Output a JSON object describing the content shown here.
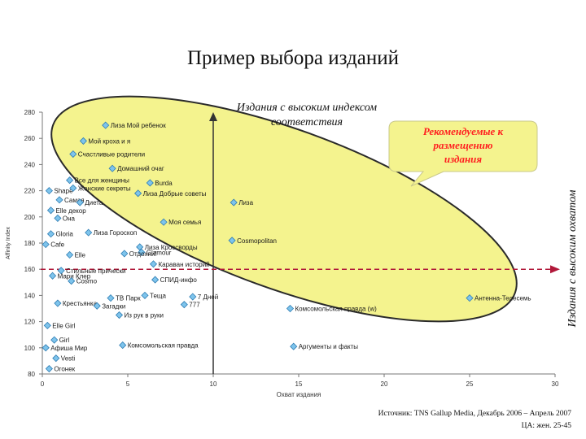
{
  "slide": {
    "title": "Пример выбора изданий",
    "source_line1": "Источник: TNS Gallup Media, Декабрь 2006 – Апрель 2007",
    "source_line2": "ЦА: жен. 25-45"
  },
  "colors": {
    "ellipse_fill": "#f4f38e",
    "ellipse_stroke": "#2a2a2a",
    "marker_fill": "#7ec4ec",
    "marker_stroke": "#2f7db3",
    "callout_fill": "#f4f38e",
    "callout_text": "#ff2020",
    "vline": "#333333",
    "hline": "#b1183a"
  },
  "chart_data": {
    "type": "scatter",
    "xlabel": "Охват издания",
    "ylabel": "Affinity Index",
    "xlim": [
      0,
      30
    ],
    "ylim": [
      80,
      280
    ],
    "xticks": [
      0,
      5,
      10,
      15,
      20,
      25,
      30
    ],
    "yticks": [
      80,
      100,
      120,
      140,
      160,
      180,
      200,
      220,
      240,
      260,
      280
    ],
    "reference_lines": {
      "x": 10,
      "y": 160
    },
    "annotations": {
      "ellipse_label_line1": "Издания с высоким индексом",
      "ellipse_label_line2": "соответствия",
      "callout_line1": "Рекомендуемые к",
      "callout_line2": "размещению",
      "callout_line3": "издания",
      "right_label": "Издания с высоким охватом"
    },
    "points": [
      {
        "label": "Лиза Мой ребенок",
        "x": 3.7,
        "y": 270
      },
      {
        "label": "Мой кроха и я",
        "x": 2.4,
        "y": 258
      },
      {
        "label": "Счастливые родители",
        "x": 1.8,
        "y": 248
      },
      {
        "label": "Домашний очаг",
        "x": 4.1,
        "y": 237
      },
      {
        "label": "Все для женщины",
        "x": 1.6,
        "y": 228
      },
      {
        "label": "Burda",
        "x": 6.3,
        "y": 226
      },
      {
        "label": "Shape",
        "x": 0.4,
        "y": 220
      },
      {
        "label": "Женские секреты",
        "x": 1.8,
        "y": 222
      },
      {
        "label": "Лиза Добрые советы",
        "x": 5.6,
        "y": 218
      },
      {
        "label": "Лиза",
        "x": 11.2,
        "y": 211
      },
      {
        "label": "Самая",
        "x": 1.0,
        "y": 213
      },
      {
        "label": "Диета",
        "x": 2.2,
        "y": 211
      },
      {
        "label": "Elle декор",
        "x": 0.5,
        "y": 205
      },
      {
        "label": "Она",
        "x": 0.9,
        "y": 199
      },
      {
        "label": "Моя семья",
        "x": 7.1,
        "y": 196
      },
      {
        "label": "Gloria",
        "x": 0.5,
        "y": 187
      },
      {
        "label": "Лиза Гороскоп",
        "x": 2.7,
        "y": 188
      },
      {
        "label": "Cosmopolitan",
        "x": 11.1,
        "y": 182
      },
      {
        "label": "Cafe",
        "x": 0.2,
        "y": 179
      },
      {
        "label": "Лиза Кроссворды",
        "x": 5.7,
        "y": 177
      },
      {
        "label": "Glamour",
        "x": 5.8,
        "y": 173
      },
      {
        "label": "Elle",
        "x": 1.6,
        "y": 171
      },
      {
        "label": "Отдохни!",
        "x": 4.8,
        "y": 172
      },
      {
        "label": "Караван историй",
        "x": 6.5,
        "y": 164
      },
      {
        "label": "Стильные прически",
        "x": 1.1,
        "y": 159
      },
      {
        "label": "СПИД-инфо",
        "x": 6.6,
        "y": 152
      },
      {
        "label": "Мари Клер",
        "x": 0.6,
        "y": 155
      },
      {
        "label": "Cosmo",
        "x": 1.7,
        "y": 151
      },
      {
        "label": "Теща",
        "x": 6.0,
        "y": 140
      },
      {
        "label": "TB Парк",
        "x": 4.0,
        "y": 138
      },
      {
        "label": "7 Дней",
        "x": 8.8,
        "y": 139
      },
      {
        "label": "Крестьянка",
        "x": 0.9,
        "y": 134
      },
      {
        "label": "Загадки",
        "x": 3.2,
        "y": 132
      },
      {
        "label": "777",
        "x": 8.3,
        "y": 133
      },
      {
        "label": "Из рук в руки",
        "x": 4.5,
        "y": 125
      },
      {
        "label": "Антенна-Телесемь",
        "x": 25.0,
        "y": 138
      },
      {
        "label": "Комсомольская правда (w)",
        "x": 14.5,
        "y": 130
      },
      {
        "label": "Elle Girl",
        "x": 0.3,
        "y": 117
      },
      {
        "label": "Girl",
        "x": 0.7,
        "y": 106
      },
      {
        "label": "Комсомольская правда",
        "x": 4.7,
        "y": 102
      },
      {
        "label": "Аргументы и факты",
        "x": 14.7,
        "y": 101
      },
      {
        "label": "Афиша Мир",
        "x": 0.2,
        "y": 100
      },
      {
        "label": "Vesti",
        "x": 0.8,
        "y": 92
      },
      {
        "label": "Огонек",
        "x": 0.4,
        "y": 84
      }
    ]
  }
}
